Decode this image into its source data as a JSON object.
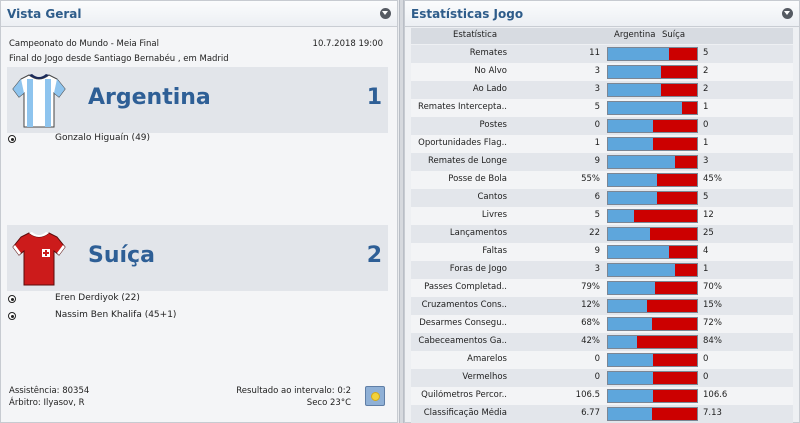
{
  "overview": {
    "title": "Vista Geral",
    "competition": "Campeonato do Mundo - Meia Final",
    "date_time": "10.7.2018 19:00",
    "location_line": "Final do Jogo desde Santiago Bernabéu , em Madrid",
    "home": {
      "name": "Argentina",
      "score": "1",
      "shirt_colors": [
        "#8ec4ee",
        "#ffffff"
      ],
      "scorers": [
        "Gonzalo Higuaín (49)"
      ]
    },
    "away": {
      "name": "Suíça",
      "score": "2",
      "shirt_colors": [
        "#cc1b1b",
        "#ffffff"
      ],
      "scorers": [
        "Eren Derdiyok (22)",
        "Nassim Ben Khalifa (45+1)"
      ]
    },
    "attendance": "Assistência: 80354",
    "referee": "Árbitro: Ilyasov, R",
    "halftime": "Resultado ao intervalo: 0:2",
    "weather": "Seco 23°C",
    "weather_icon": "sun-icon"
  },
  "stats": {
    "title": "Estatísticas Jogo",
    "header": {
      "label": "Estatística",
      "home": "Argentina",
      "away": "Suíça"
    },
    "colors": {
      "home": "#5ea6dc",
      "away": "#cc0000"
    },
    "rows": [
      {
        "label": "Remates",
        "home": "11",
        "away": "5",
        "home_share": 0.69
      },
      {
        "label": "No Alvo",
        "home": "3",
        "away": "2",
        "home_share": 0.6
      },
      {
        "label": "Ao Lado",
        "home": "3",
        "away": "2",
        "home_share": 0.6
      },
      {
        "label": "Remates Intercepta..",
        "home": "5",
        "away": "1",
        "home_share": 0.83
      },
      {
        "label": "Postes",
        "home": "0",
        "away": "0",
        "home_share": 0.5
      },
      {
        "label": "Oportunidades Flag..",
        "home": "1",
        "away": "1",
        "home_share": 0.5
      },
      {
        "label": "Remates de Longe",
        "home": "9",
        "away": "3",
        "home_share": 0.75
      },
      {
        "label": "Posse de Bola",
        "home": "55%",
        "away": "45%",
        "home_share": 0.55
      },
      {
        "label": "Cantos",
        "home": "6",
        "away": "5",
        "home_share": 0.55
      },
      {
        "label": "Livres",
        "home": "5",
        "away": "12",
        "home_share": 0.29
      },
      {
        "label": "Lançamentos",
        "home": "22",
        "away": "25",
        "home_share": 0.47
      },
      {
        "label": "Faltas",
        "home": "9",
        "away": "4",
        "home_share": 0.69
      },
      {
        "label": "Foras de Jogo",
        "home": "3",
        "away": "1",
        "home_share": 0.75
      },
      {
        "label": "Passes Completad..",
        "home": "79%",
        "away": "70%",
        "home_share": 0.53
      },
      {
        "label": "Cruzamentos Cons..",
        "home": "12%",
        "away": "15%",
        "home_share": 0.44
      },
      {
        "label": "Desarmes Consegu..",
        "home": "68%",
        "away": "72%",
        "home_share": 0.49
      },
      {
        "label": "Cabeceamentos Ga..",
        "home": "42%",
        "away": "84%",
        "home_share": 0.33
      },
      {
        "label": "Amarelos",
        "home": "0",
        "away": "0",
        "home_share": 0.5
      },
      {
        "label": "Vermelhos",
        "home": "0",
        "away": "0",
        "home_share": 0.5
      },
      {
        "label": "Quilómetros Percor..",
        "home": "106.5",
        "away": "106.6",
        "home_share": 0.5
      },
      {
        "label": "Classificação Média",
        "home": "6.77",
        "away": "7.13",
        "home_share": 0.49
      }
    ]
  }
}
